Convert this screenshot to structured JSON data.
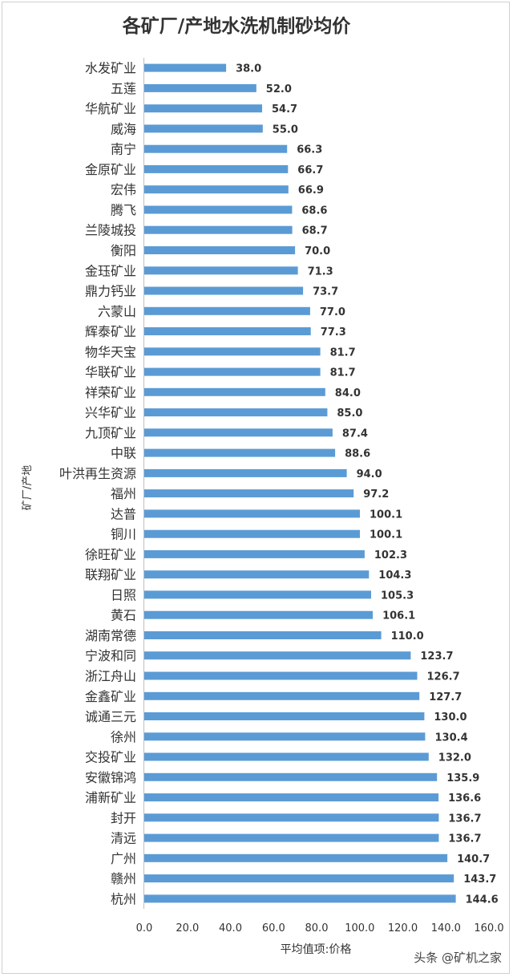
{
  "chart_data": {
    "type": "bar",
    "orientation": "horizontal",
    "title": "各矿厂/产地水洗机制砂均价",
    "xlabel": "平均值项:价格",
    "ylabel": "矿厂/产地",
    "xlim": [
      0,
      160
    ],
    "xticks": [
      "0.0",
      "20.0",
      "40.0",
      "60.0",
      "80.0",
      "100.0",
      "120.0",
      "140.0",
      "160.0"
    ],
    "bar_color": "#5b9bd5",
    "grid": false,
    "legend": "none",
    "categories": [
      "水发矿业",
      "五莲",
      "华航矿业",
      "威海",
      "南宁",
      "金原矿业",
      "宏伟",
      "腾飞",
      "兰陵城投",
      "衡阳",
      "金珏矿业",
      "鼎力钙业",
      "六蒙山",
      "辉泰矿业",
      "物华天宝",
      "华联矿业",
      "祥荣矿业",
      "兴华矿业",
      "九顶矿业",
      "中联",
      "叶洪再生资源",
      "福州",
      "达普",
      "铜川",
      "徐旺矿业",
      "联翔矿业",
      "日照",
      "黄石",
      "湖南常德",
      "宁波和同",
      "浙江舟山",
      "金鑫矿业",
      "诚通三元",
      "徐州",
      "交投矿业",
      "安徽锦鸿",
      "浦新矿业",
      "封开",
      "清远",
      "广州",
      "赣州",
      "杭州"
    ],
    "values": [
      38.0,
      52.0,
      54.7,
      55.0,
      66.3,
      66.7,
      66.9,
      68.6,
      68.7,
      70.0,
      71.3,
      73.7,
      77.0,
      77.3,
      81.7,
      81.7,
      84.0,
      85.0,
      87.4,
      88.6,
      94.0,
      97.2,
      100.1,
      100.1,
      102.3,
      104.3,
      105.3,
      106.1,
      110.0,
      123.7,
      126.7,
      127.7,
      130.0,
      130.4,
      132.0,
      135.9,
      136.6,
      136.7,
      136.7,
      140.7,
      143.7,
      144.6
    ],
    "data_labels": [
      "38.0",
      "52.0",
      "54.7",
      "55.0",
      "66.3",
      "66.7",
      "66.9",
      "68.6",
      "68.7",
      "70.0",
      "71.3",
      "73.7",
      "77.0",
      "77.3",
      "81.7",
      "81.7",
      "84.0",
      "85.0",
      "87.4",
      "88.6",
      "94.0",
      "97.2",
      "100.1",
      "100.1",
      "102.3",
      "104.3",
      "105.3",
      "106.1",
      "110.0",
      "123.7",
      "126.7",
      "127.7",
      "130.0",
      "130.4",
      "132.0",
      "135.9",
      "136.6",
      "136.7",
      "136.7",
      "140.7",
      "143.7",
      "144.6"
    ]
  },
  "watermark": "头条 @矿机之家"
}
